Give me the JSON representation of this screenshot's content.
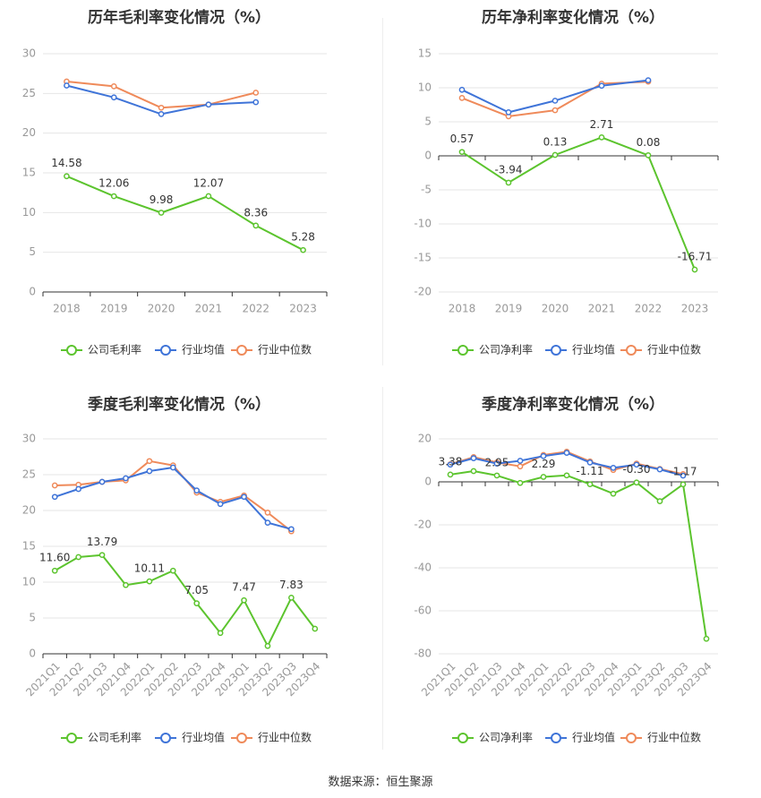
{
  "source_text": "数据来源：恒生聚源",
  "colors": {
    "company": "#5cc42e",
    "industry_avg": "#3f74d8",
    "industry_median": "#ef8a5a"
  },
  "chart_data": [
    {
      "type": "line",
      "title": "历年毛利率变化情况（%）",
      "categories": [
        "2018",
        "2019",
        "2020",
        "2021",
        "2022",
        "2023"
      ],
      "ylim": [
        0,
        30
      ],
      "yticks": [
        0,
        5,
        10,
        15,
        20,
        25,
        30
      ],
      "grid": true,
      "legend_position": "bottom",
      "series": [
        {
          "name": "公司毛利率",
          "values": [
            14.58,
            12.06,
            9.98,
            12.07,
            8.36,
            5.28
          ],
          "labels": [
            "14.58",
            "12.06",
            "9.98",
            "12.07",
            "8.36",
            "5.28"
          ]
        },
        {
          "name": "行业均值",
          "values": [
            26.0,
            24.5,
            22.4,
            23.6,
            23.9,
            null
          ]
        },
        {
          "name": "行业中位数",
          "values": [
            26.5,
            25.9,
            23.2,
            23.6,
            25.1,
            null
          ]
        }
      ]
    },
    {
      "type": "line",
      "title": "历年净利率变化情况（%）",
      "categories": [
        "2018",
        "2019",
        "2020",
        "2021",
        "2022",
        "2023"
      ],
      "ylim": [
        -20,
        15
      ],
      "yticks": [
        -20,
        -15,
        -10,
        -5,
        0,
        5,
        10,
        15
      ],
      "grid": true,
      "legend_position": "bottom",
      "series": [
        {
          "name": "公司净利率",
          "values": [
            0.57,
            -3.94,
            0.13,
            2.71,
            0.08,
            -16.71
          ],
          "labels": [
            "0.57",
            "-3.94",
            "0.13",
            "2.71",
            "0.08",
            "-16.71"
          ]
        },
        {
          "name": "行业均值",
          "values": [
            9.7,
            6.4,
            8.1,
            10.3,
            11.1,
            null
          ]
        },
        {
          "name": "行业中位数",
          "values": [
            8.5,
            5.8,
            6.7,
            10.6,
            10.9,
            null
          ]
        }
      ]
    },
    {
      "type": "line",
      "title": "季度毛利率变化情况（%）",
      "categories": [
        "2021Q1",
        "2021Q2",
        "2021Q3",
        "2021Q4",
        "2022Q1",
        "2022Q2",
        "2022Q3",
        "2022Q4",
        "2023Q1",
        "2023Q2",
        "2023Q3",
        "2023Q4"
      ],
      "ylim": [
        0,
        30
      ],
      "yticks": [
        0,
        5,
        10,
        15,
        20,
        25,
        30
      ],
      "grid": true,
      "legend_position": "bottom",
      "series": [
        {
          "name": "公司毛利率",
          "values": [
            11.6,
            13.5,
            13.79,
            9.6,
            10.11,
            11.6,
            7.05,
            2.9,
            7.47,
            1.1,
            7.83,
            3.5
          ],
          "labels": [
            "11.60",
            null,
            "13.79",
            null,
            "10.11",
            null,
            "7.05",
            null,
            "7.47",
            null,
            "7.83",
            null
          ]
        },
        {
          "name": "行业均值",
          "values": [
            21.9,
            23.0,
            24.0,
            24.5,
            25.5,
            26.0,
            22.8,
            20.9,
            21.9,
            18.3,
            17.4,
            null
          ]
        },
        {
          "name": "行业中位数",
          "values": [
            23.5,
            23.6,
            24.0,
            24.2,
            26.9,
            26.3,
            22.5,
            21.2,
            22.1,
            19.7,
            17.1,
            null
          ]
        }
      ]
    },
    {
      "type": "line",
      "title": "季度净利率变化情况（%）",
      "categories": [
        "2021Q1",
        "2021Q2",
        "2021Q3",
        "2021Q4",
        "2022Q1",
        "2022Q2",
        "2022Q3",
        "2022Q4",
        "2023Q1",
        "2023Q2",
        "2023Q3",
        "2023Q4"
      ],
      "ylim": [
        -80,
        20
      ],
      "yticks": [
        -80,
        -60,
        -40,
        -20,
        0,
        20
      ],
      "grid": true,
      "legend_position": "bottom",
      "series": [
        {
          "name": "公司净利率",
          "values": [
            3.38,
            5.0,
            2.95,
            -0.5,
            2.29,
            3.0,
            -1.11,
            -5.5,
            -0.3,
            -9.0,
            -1.17,
            -73.0
          ],
          "labels": [
            "3.38",
            null,
            "2.95",
            null,
            "2.29",
            null,
            "-1.11",
            null,
            "-0.30",
            null,
            "-1.17",
            null
          ]
        },
        {
          "name": "行业均值",
          "values": [
            8.0,
            11.0,
            8.5,
            9.8,
            12.0,
            13.5,
            9.0,
            6.5,
            8.0,
            5.8,
            2.9,
            null
          ]
        },
        {
          "name": "行业中位数",
          "values": [
            8.2,
            11.5,
            9.0,
            7.2,
            12.5,
            14.0,
            9.5,
            5.5,
            8.5,
            6.0,
            3.6,
            null
          ]
        }
      ]
    }
  ]
}
